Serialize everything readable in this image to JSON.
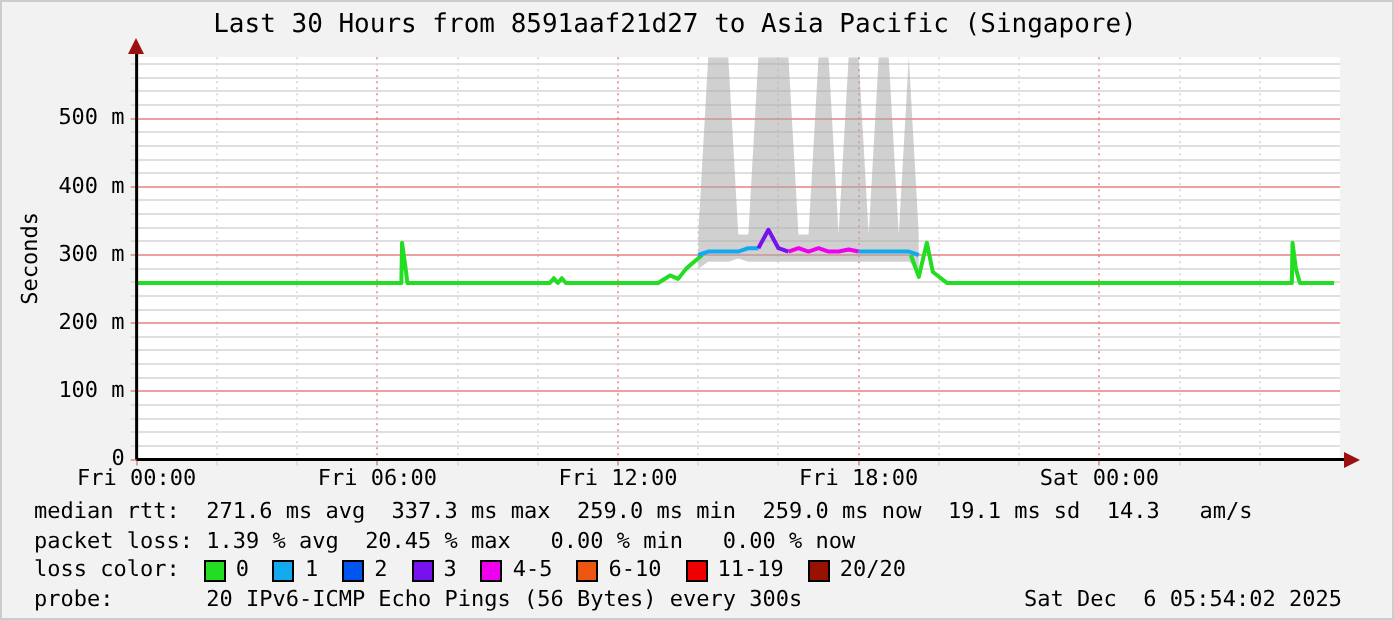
{
  "chart_data": {
    "type": "line",
    "title": "Last 30 Hours from 8591aaf21d27 to Asia Pacific (Singapore)",
    "ylabel": "Seconds",
    "xlim": [
      "2025-12-05T00:00",
      "2025-12-06T06:00"
    ],
    "xticks": [
      {
        "value": "2025-12-05T00:00",
        "label": "Fri 00:00"
      },
      {
        "value": "2025-12-05T02:00",
        "label": null
      },
      {
        "value": "2025-12-05T04:00",
        "label": null
      },
      {
        "value": "2025-12-05T06:00",
        "label": "Fri 06:00"
      },
      {
        "value": "2025-12-05T08:00",
        "label": null
      },
      {
        "value": "2025-12-05T10:00",
        "label": null
      },
      {
        "value": "2025-12-05T12:00",
        "label": "Fri 12:00"
      },
      {
        "value": "2025-12-05T14:00",
        "label": null
      },
      {
        "value": "2025-12-05T16:00",
        "label": null
      },
      {
        "value": "2025-12-05T18:00",
        "label": "Fri 18:00"
      },
      {
        "value": "2025-12-05T20:00",
        "label": null
      },
      {
        "value": "2025-12-05T22:00",
        "label": null
      },
      {
        "value": "2025-12-06T00:00",
        "label": "Sat 00:00"
      },
      {
        "value": "2025-12-06T02:00",
        "label": null
      },
      {
        "value": "2025-12-06T04:00",
        "label": null
      }
    ],
    "ylim": [
      0,
      590
    ],
    "yticks": [
      0,
      {
        "value": 20,
        "label": null
      },
      {
        "value": 40,
        "label": null
      },
      {
        "value": 60,
        "label": null
      },
      {
        "value": 80,
        "label": null
      },
      {
        "value": 100,
        "label": "100 m"
      },
      {
        "value": 120,
        "label": null
      },
      {
        "value": 140,
        "label": null
      },
      {
        "value": 160,
        "label": null
      },
      {
        "value": 180,
        "label": null
      },
      {
        "value": 200,
        "label": "200 m"
      },
      {
        "value": 220,
        "label": null
      },
      {
        "value": 240,
        "label": null
      },
      {
        "value": 260,
        "label": null
      },
      {
        "value": 280,
        "label": null
      },
      {
        "value": 300,
        "label": "300 m"
      },
      {
        "value": 320,
        "label": null
      },
      {
        "value": 340,
        "label": null
      },
      {
        "value": 360,
        "label": null
      },
      {
        "value": 380,
        "label": null
      },
      {
        "value": 400,
        "label": "400 m"
      },
      {
        "value": 420,
        "label": null
      },
      {
        "value": 440,
        "label": null
      },
      {
        "value": 460,
        "label": null
      },
      {
        "value": 480,
        "label": null
      },
      {
        "value": 500,
        "label": "500 m"
      },
      {
        "value": 520,
        "label": null
      },
      {
        "value": 540,
        "label": null
      },
      {
        "value": 560,
        "label": null
      },
      {
        "value": 580,
        "label": null
      }
    ],
    "grid": true,
    "legend": "bottom",
    "series": [
      {
        "name": "0",
        "color": "#22dd22",
        "x": [
          "2025-12-05T00:00",
          "2025-12-05T06:36",
          "2025-12-05T06:37",
          "2025-12-05T06:42",
          "2025-12-05T06:45",
          "2025-12-05T06:48",
          "2025-12-05T10:18",
          "2025-12-05T10:24",
          "2025-12-05T10:30",
          "2025-12-05T10:36",
          "2025-12-05T10:42",
          "2025-12-05T10:48",
          "2025-12-05T13:00",
          "2025-12-05T13:18",
          "2025-12-05T13:30",
          "2025-12-05T13:42",
          "2025-12-05T13:54",
          "2025-12-05T14:06",
          "2025-12-05T16:00",
          "2025-12-05T19:18",
          "2025-12-05T19:30",
          "2025-12-05T19:42",
          "2025-12-05T19:51",
          "2025-12-05T20:12",
          "2025-12-06T04:48",
          "2025-12-06T04:49",
          "2025-12-06T04:54",
          "2025-12-06T05:00",
          "2025-12-06T05:51"
        ],
        "values": [
          259,
          259,
          318,
          283,
          259,
          259,
          259,
          266,
          259,
          266,
          259,
          259,
          259,
          270,
          265,
          280,
          290,
          300,
          null,
          300,
          268,
          318,
          275,
          259,
          259,
          318,
          280,
          259,
          259
        ]
      },
      {
        "name": "1",
        "color": "#11aaee",
        "x": [
          "2025-12-05T14:00",
          "2025-12-05T14:15",
          "2025-12-05T14:30",
          "2025-12-05T14:45",
          "2025-12-05T15:00",
          "2025-12-05T15:15",
          "2025-12-05T15:30",
          "2025-12-05T15:45",
          "2025-12-05T16:00",
          "2025-12-05T16:15",
          "2025-12-05T16:30",
          "2025-12-05T16:45",
          "2025-12-05T17:00",
          "2025-12-05T17:15",
          "2025-12-05T17:30",
          "2025-12-05T17:45",
          "2025-12-05T18:00",
          "2025-12-05T18:15",
          "2025-12-05T18:30",
          "2025-12-05T18:45",
          "2025-12-05T19:00",
          "2025-12-05T19:15",
          "2025-12-05T19:30"
        ],
        "values": [
          300,
          305,
          305,
          305,
          305,
          310,
          310,
          null,
          null,
          null,
          null,
          null,
          null,
          null,
          null,
          null,
          305,
          305,
          305,
          305,
          305,
          305,
          300
        ],
        "lower": [
          280,
          290,
          290,
          290,
          295,
          290,
          290,
          290,
          290,
          290,
          290,
          290,
          290,
          290,
          290,
          290,
          290,
          290,
          290,
          290,
          290,
          290,
          280
        ],
        "upper": [
          330,
          590,
          590,
          590,
          330,
          330,
          590,
          590,
          590,
          590,
          330,
          330,
          590,
          590,
          330,
          590,
          590,
          330,
          590,
          590,
          330,
          590,
          330
        ]
      },
      {
        "name": "2",
        "color": "#0055ee"
      },
      {
        "name": "3",
        "color": "#7711ee",
        "x": [
          "2025-12-05T15:30",
          "2025-12-05T15:45",
          "2025-12-05T16:00",
          "2025-12-05T16:15"
        ],
        "values": [
          310,
          337,
          310,
          305
        ]
      },
      {
        "name": "4-5",
        "color": "#ee00ee",
        "x": [
          "2025-12-05T16:15",
          "2025-12-05T16:30",
          "2025-12-05T16:45",
          "2025-12-05T17:00",
          "2025-12-05T17:15",
          "2025-12-05T17:30",
          "2025-12-05T17:45",
          "2025-12-05T18:00"
        ],
        "values": [
          305,
          310,
          305,
          310,
          305,
          305,
          308,
          305
        ]
      },
      {
        "name": "6-10",
        "color": "#ee5511"
      },
      {
        "name": "11-19",
        "color": "#ee0000"
      },
      {
        "name": "20/20",
        "color": "#991100"
      }
    ],
    "annotations": [
      "median rtt:  271.6 ms avg  337.3 ms max  259.0 ms min  259.0 ms now  19.1 ms sd  14.3   am/s",
      "packet loss: 1.39 % avg  20.45 % max   0.00 % min   0.00 % now",
      "loss color:",
      "probe:       20 IPv6-ICMP Echo Pings (56 Bytes) every 300s",
      "Sat Dec  6 05:54:02 2025"
    ]
  }
}
